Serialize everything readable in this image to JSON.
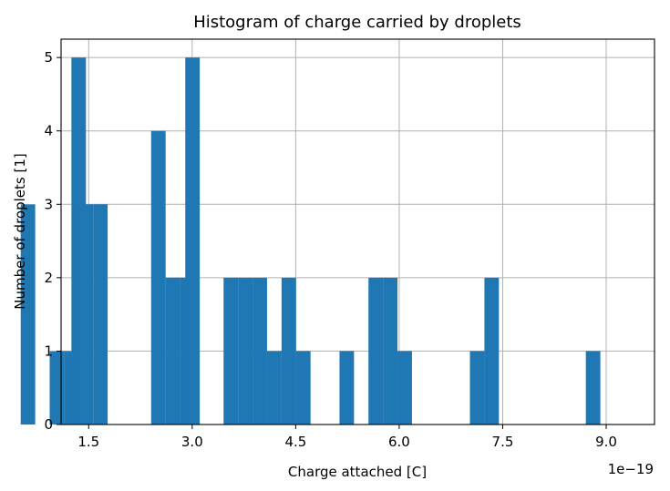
{
  "chart_data": {
    "type": "bar",
    "title": "Histogram of charge carried by droplets",
    "xlabel": "Charge attached [C]",
    "ylabel": "Number of droplets [1]",
    "x_offset_text": "1e−19",
    "xlim": [
      0.11,
      0.97
    ],
    "ylim": [
      0,
      5.25
    ],
    "xticks": [
      0.15,
      0.3,
      0.45,
      0.6,
      0.75,
      0.9
    ],
    "xtick_labels": [
      "1.5",
      "3.0",
      "4.5",
      "6.0",
      "7.5",
      "9.0"
    ],
    "yticks": [
      0,
      1,
      2,
      3,
      4,
      5
    ],
    "ytick_labels": [
      "0",
      "1",
      "2",
      "3",
      "4",
      "5"
    ],
    "grid": true,
    "bar_color": "#1f77b4",
    "bin_width": 0.021,
    "bins": [
      {
        "x0": 0.0515,
        "count": 3
      },
      {
        "x0": 0.0935,
        "count": 1
      },
      {
        "x0": 0.1145,
        "count": 1
      },
      {
        "x0": 0.125,
        "count": 5
      },
      {
        "x0": 0.1355,
        "count": 3
      },
      {
        "x0": 0.1565,
        "count": 3
      },
      {
        "x0": 0.2405,
        "count": 4
      },
      {
        "x0": 0.2615,
        "count": 2
      },
      {
        "x0": 0.2825,
        "count": 2
      },
      {
        "x0": 0.29,
        "count": 5
      },
      {
        "x0": 0.3455,
        "count": 2
      },
      {
        "x0": 0.3665,
        "count": 2
      },
      {
        "x0": 0.3875,
        "count": 2
      },
      {
        "x0": 0.4085,
        "count": 1
      },
      {
        "x0": 0.4295,
        "count": 1
      },
      {
        "x0": 0.4295,
        "count": 2
      },
      {
        "x0": 0.4505,
        "count": 1
      },
      {
        "x0": 0.5135,
        "count": 1
      },
      {
        "x0": 0.5555,
        "count": 2
      },
      {
        "x0": 0.5765,
        "count": 2
      },
      {
        "x0": 0.5975,
        "count": 1
      },
      {
        "x0": 0.7025,
        "count": 1
      },
      {
        "x0": 0.7235,
        "count": 2
      },
      {
        "x0": 0.8705,
        "count": 1
      }
    ]
  }
}
